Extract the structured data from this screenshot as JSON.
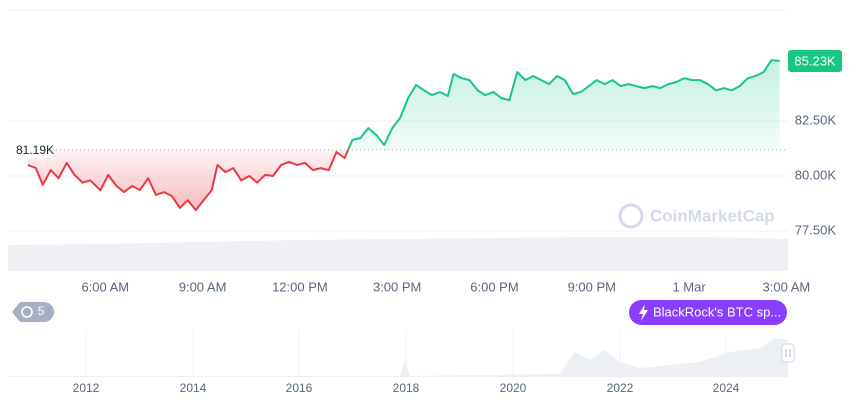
{
  "chart_data": {
    "type": "line",
    "x": [
      3.61,
      3.86,
      4.07,
      4.32,
      4.56,
      4.81,
      5.05,
      5.3,
      5.54,
      5.85,
      6.09,
      6.34,
      6.58,
      6.83,
      7.07,
      7.32,
      7.56,
      7.81,
      8.05,
      8.3,
      8.54,
      8.79,
      9.03,
      9.28,
      9.46,
      9.7,
      9.95,
      10.19,
      10.44,
      10.68,
      10.93,
      11.17,
      11.42,
      11.66,
      11.91,
      12.15,
      12.4,
      12.64,
      12.89,
      13.13,
      13.38,
      13.62,
      13.87,
      14.11,
      14.36,
      14.6,
      14.85,
      15.09,
      15.34,
      15.58,
      15.83,
      16.07,
      16.32,
      16.56,
      16.74,
      16.99,
      17.23,
      17.48,
      17.72,
      17.97,
      18.21,
      18.46,
      18.7,
      18.95,
      19.19,
      19.44,
      19.68,
      19.93,
      20.17,
      20.42,
      20.66,
      20.91,
      21.15,
      21.4,
      21.64,
      21.89,
      22.13,
      22.38,
      22.62,
      22.87,
      23.11,
      23.36,
      23.6,
      23.85,
      24.09,
      24.34,
      24.58,
      24.83,
      25.07,
      25.32,
      25.56,
      25.81,
      26.05,
      26.3,
      26.54,
      26.79
    ],
    "series": [
      {
        "name": "BTC",
        "color_up": "#16c784",
        "color_down": "#ea3943",
        "values": [
          80500,
          80360,
          79600,
          80270,
          79900,
          80600,
          80050,
          79700,
          79800,
          79350,
          80050,
          79550,
          79270,
          79550,
          79360,
          79900,
          79140,
          79270,
          79090,
          78550,
          78900,
          78450,
          78900,
          79360,
          80500,
          80180,
          80360,
          79800,
          80000,
          79700,
          80050,
          80000,
          80500,
          80640,
          80500,
          80600,
          80270,
          80360,
          80270,
          81090,
          80820,
          81640,
          81730,
          82180,
          81860,
          81410,
          82180,
          82640,
          83550,
          84140,
          83900,
          83680,
          83820,
          83640,
          84640,
          84450,
          84360,
          83900,
          83680,
          83820,
          83550,
          83450,
          84730,
          84360,
          84550,
          84360,
          84180,
          84550,
          84360,
          83730,
          83820,
          84090,
          84360,
          84180,
          84360,
          84090,
          84180,
          84090,
          84000,
          84090,
          84000,
          84180,
          84270,
          84450,
          84360,
          84360,
          84180,
          83900,
          84000,
          83900,
          84090,
          84450,
          84550,
          84730,
          85270,
          85230
        ]
      }
    ],
    "baseline": {
      "value": 81190,
      "label": "81.19K"
    },
    "current_price": {
      "value": 85230,
      "label": "85.23K"
    },
    "xlim": [
      3.0,
      27.05
    ],
    "ylim": [
      75680,
      87550
    ],
    "xticks": [
      {
        "value": 6,
        "label": "6:00 AM"
      },
      {
        "value": 9,
        "label": "9:00 AM"
      },
      {
        "value": 12,
        "label": "12:00 PM"
      },
      {
        "value": 15,
        "label": "3:00 PM"
      },
      {
        "value": 18,
        "label": "6:00 PM"
      },
      {
        "value": 21,
        "label": "9:00 PM"
      },
      {
        "value": 24,
        "label": "1 Mar"
      },
      {
        "value": 27,
        "label": "3:00 AM"
      }
    ],
    "yticks": [
      {
        "value": 77500,
        "label": "77.50K"
      },
      {
        "value": 80000,
        "label": "80.00K"
      },
      {
        "value": 82500,
        "label": "82.50K"
      }
    ],
    "grid": true,
    "watermark": "CoinMarketCap",
    "history_badge": "5",
    "annotation": "BlackRock's BTC sp...",
    "navigator_labels": [
      "2012",
      "2014",
      "2016",
      "2018",
      "2020",
      "2022",
      "2024"
    ]
  }
}
